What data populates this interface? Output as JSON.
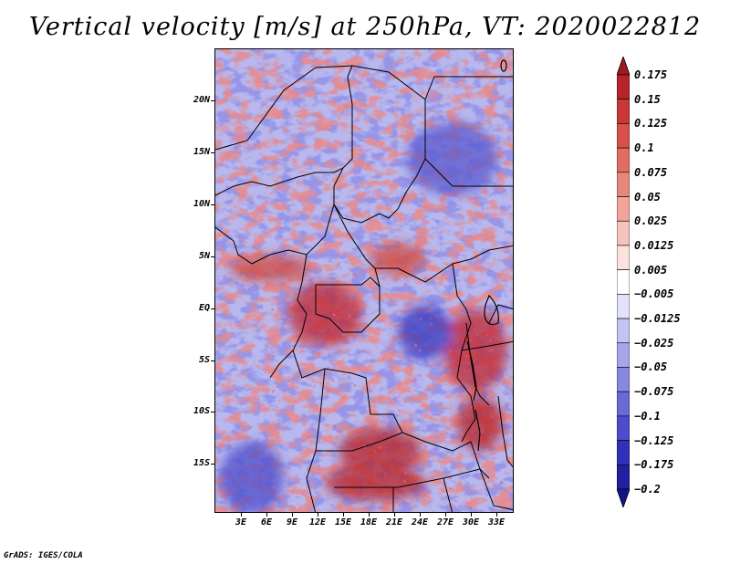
{
  "title": "Vertical velocity [m/s] at 250hPa, VT: 2020022812",
  "credit": "GrADS: IGES/COLA",
  "map": {
    "variable": "Vertical velocity",
    "units": "m/s",
    "level": "250hPa",
    "valid_time": "2020022812",
    "lon_range": [
      0,
      35
    ],
    "lat_range": [
      -20,
      24.5
    ],
    "lat_labels": [
      {
        "value": 20,
        "text": "20N"
      },
      {
        "value": 15,
        "text": "15N"
      },
      {
        "value": 10,
        "text": "10N"
      },
      {
        "value": 5,
        "text": "5N"
      },
      {
        "value": 0,
        "text": "EQ"
      },
      {
        "value": -5,
        "text": "5S"
      },
      {
        "value": -10,
        "text": "10S"
      },
      {
        "value": -15,
        "text": "15S"
      }
    ],
    "lon_labels": [
      {
        "value": 3,
        "text": "3E"
      },
      {
        "value": 6,
        "text": "6E"
      },
      {
        "value": 9,
        "text": "9E"
      },
      {
        "value": 12,
        "text": "12E"
      },
      {
        "value": 15,
        "text": "15E"
      },
      {
        "value": 18,
        "text": "18E"
      },
      {
        "value": 21,
        "text": "21E"
      },
      {
        "value": 24,
        "text": "24E"
      },
      {
        "value": 27,
        "text": "27E"
      },
      {
        "value": 30,
        "text": "30E"
      },
      {
        "value": 33,
        "text": "33E"
      }
    ]
  },
  "colorbar": {
    "levels": [
      "0.175",
      "0.15",
      "0.125",
      "0.1",
      "0.075",
      "0.05",
      "0.025",
      "0.0125",
      "0.005",
      "-0.005",
      "-0.0125",
      "-0.025",
      "-0.05",
      "-0.075",
      "-0.1",
      "-0.125",
      "-0.175",
      "-0.2"
    ],
    "colors": [
      "#a01820",
      "#b4242a",
      "#c83836",
      "#d8504a",
      "#e06c62",
      "#e8887c",
      "#f0a49a",
      "#f6c4bc",
      "#fbe2de",
      "#ffffff",
      "#e2e2fa",
      "#c4c4f2",
      "#a6a6ea",
      "#8888e0",
      "#6a6ad6",
      "#4c4ccc",
      "#3030b8",
      "#2020a0",
      "#14148a"
    ],
    "top_color": "#a01820",
    "bottom_color": "#14148a"
  }
}
